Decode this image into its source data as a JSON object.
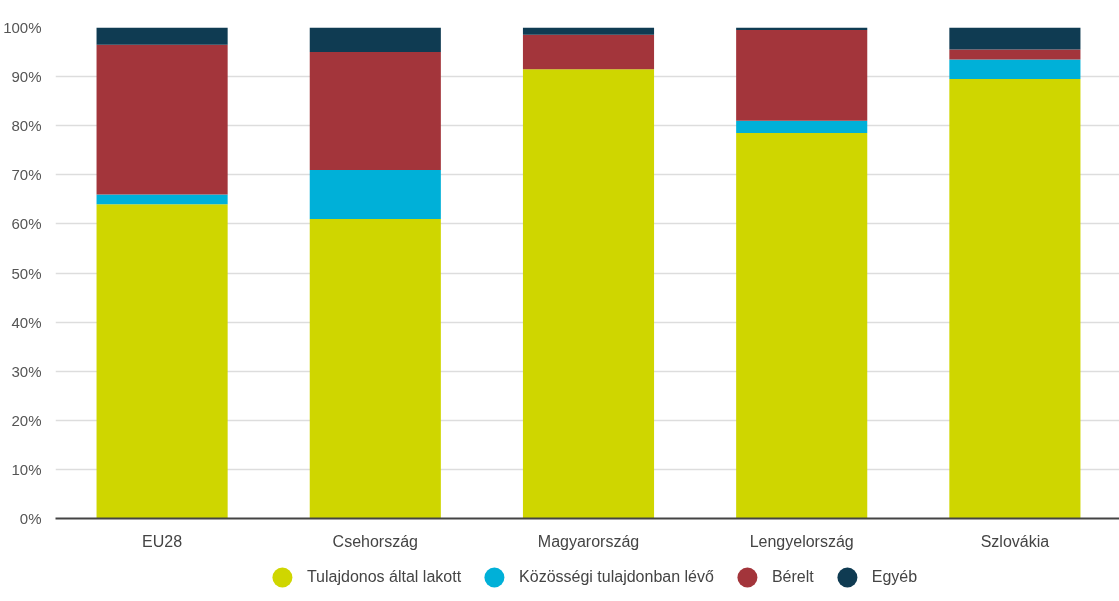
{
  "chart_data": {
    "type": "bar",
    "stacked": true,
    "categories": [
      "EU28",
      "Csehország",
      "Magyarország",
      "Lengyelország",
      "Szlovákia"
    ],
    "series": [
      {
        "name": "Tulajdonos által lakott",
        "color": "#cfd600",
        "values": [
          64,
          61,
          91.5,
          78.5,
          89.5
        ]
      },
      {
        "name": "Közösségi tulajdonban lévő",
        "color": "#00b0d8",
        "values": [
          2,
          10,
          0,
          2.5,
          4
        ]
      },
      {
        "name": "Bérelt",
        "color": "#a3353b",
        "values": [
          30.5,
          24,
          7,
          18.5,
          2
        ]
      },
      {
        "name": "Egyéb",
        "color": "#0f3b52",
        "values": [
          3.5,
          5,
          1.5,
          0.5,
          4.5
        ]
      }
    ],
    "ylim": [
      0,
      100
    ],
    "yticks": [
      {
        "value": 0,
        "label": "0%"
      },
      {
        "value": 10,
        "label": "10%"
      },
      {
        "value": 20,
        "label": "20%"
      },
      {
        "value": 30,
        "label": "30%"
      },
      {
        "value": 40,
        "label": "40%"
      },
      {
        "value": 50,
        "label": "50%"
      },
      {
        "value": 60,
        "label": "60%"
      },
      {
        "value": 70,
        "label": "70%"
      },
      {
        "value": 80,
        "label": "80%"
      },
      {
        "value": 90,
        "label": "90%"
      },
      {
        "value": 100,
        "label": "100%"
      }
    ],
    "grid": "y",
    "legend": "bottom"
  }
}
